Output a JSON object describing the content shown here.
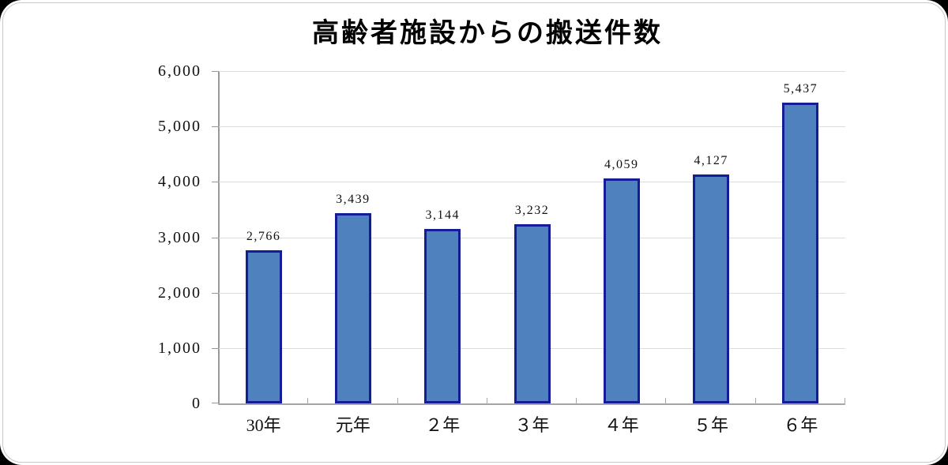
{
  "page": {
    "background": "#000000",
    "canvas_background": "#ffffff",
    "frame_border_color": "#c9c9c9"
  },
  "chart_data": {
    "type": "bar",
    "title": "高齢者施設からの搬送件数",
    "categories": [
      "30年",
      "元年",
      "２年",
      "３年",
      "４年",
      "５年",
      "６年"
    ],
    "values": [
      2766,
      3439,
      3144,
      3232,
      4059,
      4127,
      5437
    ],
    "value_labels": [
      "2,766",
      "3,439",
      "3,144",
      "3,232",
      "4,059",
      "4,127",
      "5,437"
    ],
    "xlabel": "",
    "ylabel": "",
    "ylim": [
      0,
      6000
    ],
    "ytick_step": 1000,
    "ytick_labels": [
      "0",
      "1,000",
      "2,000",
      "3,000",
      "4,000",
      "5,000",
      "6,000"
    ],
    "grid": true,
    "legend_position": "none",
    "colors": {
      "bar_fill": "#4e81bd",
      "bar_border": "#141c96",
      "gridline": "#dcdcdc",
      "y_axis": "#999999",
      "x_axis": "#a6a6a6",
      "title_text": "#000000",
      "label_text": "#111111"
    }
  }
}
